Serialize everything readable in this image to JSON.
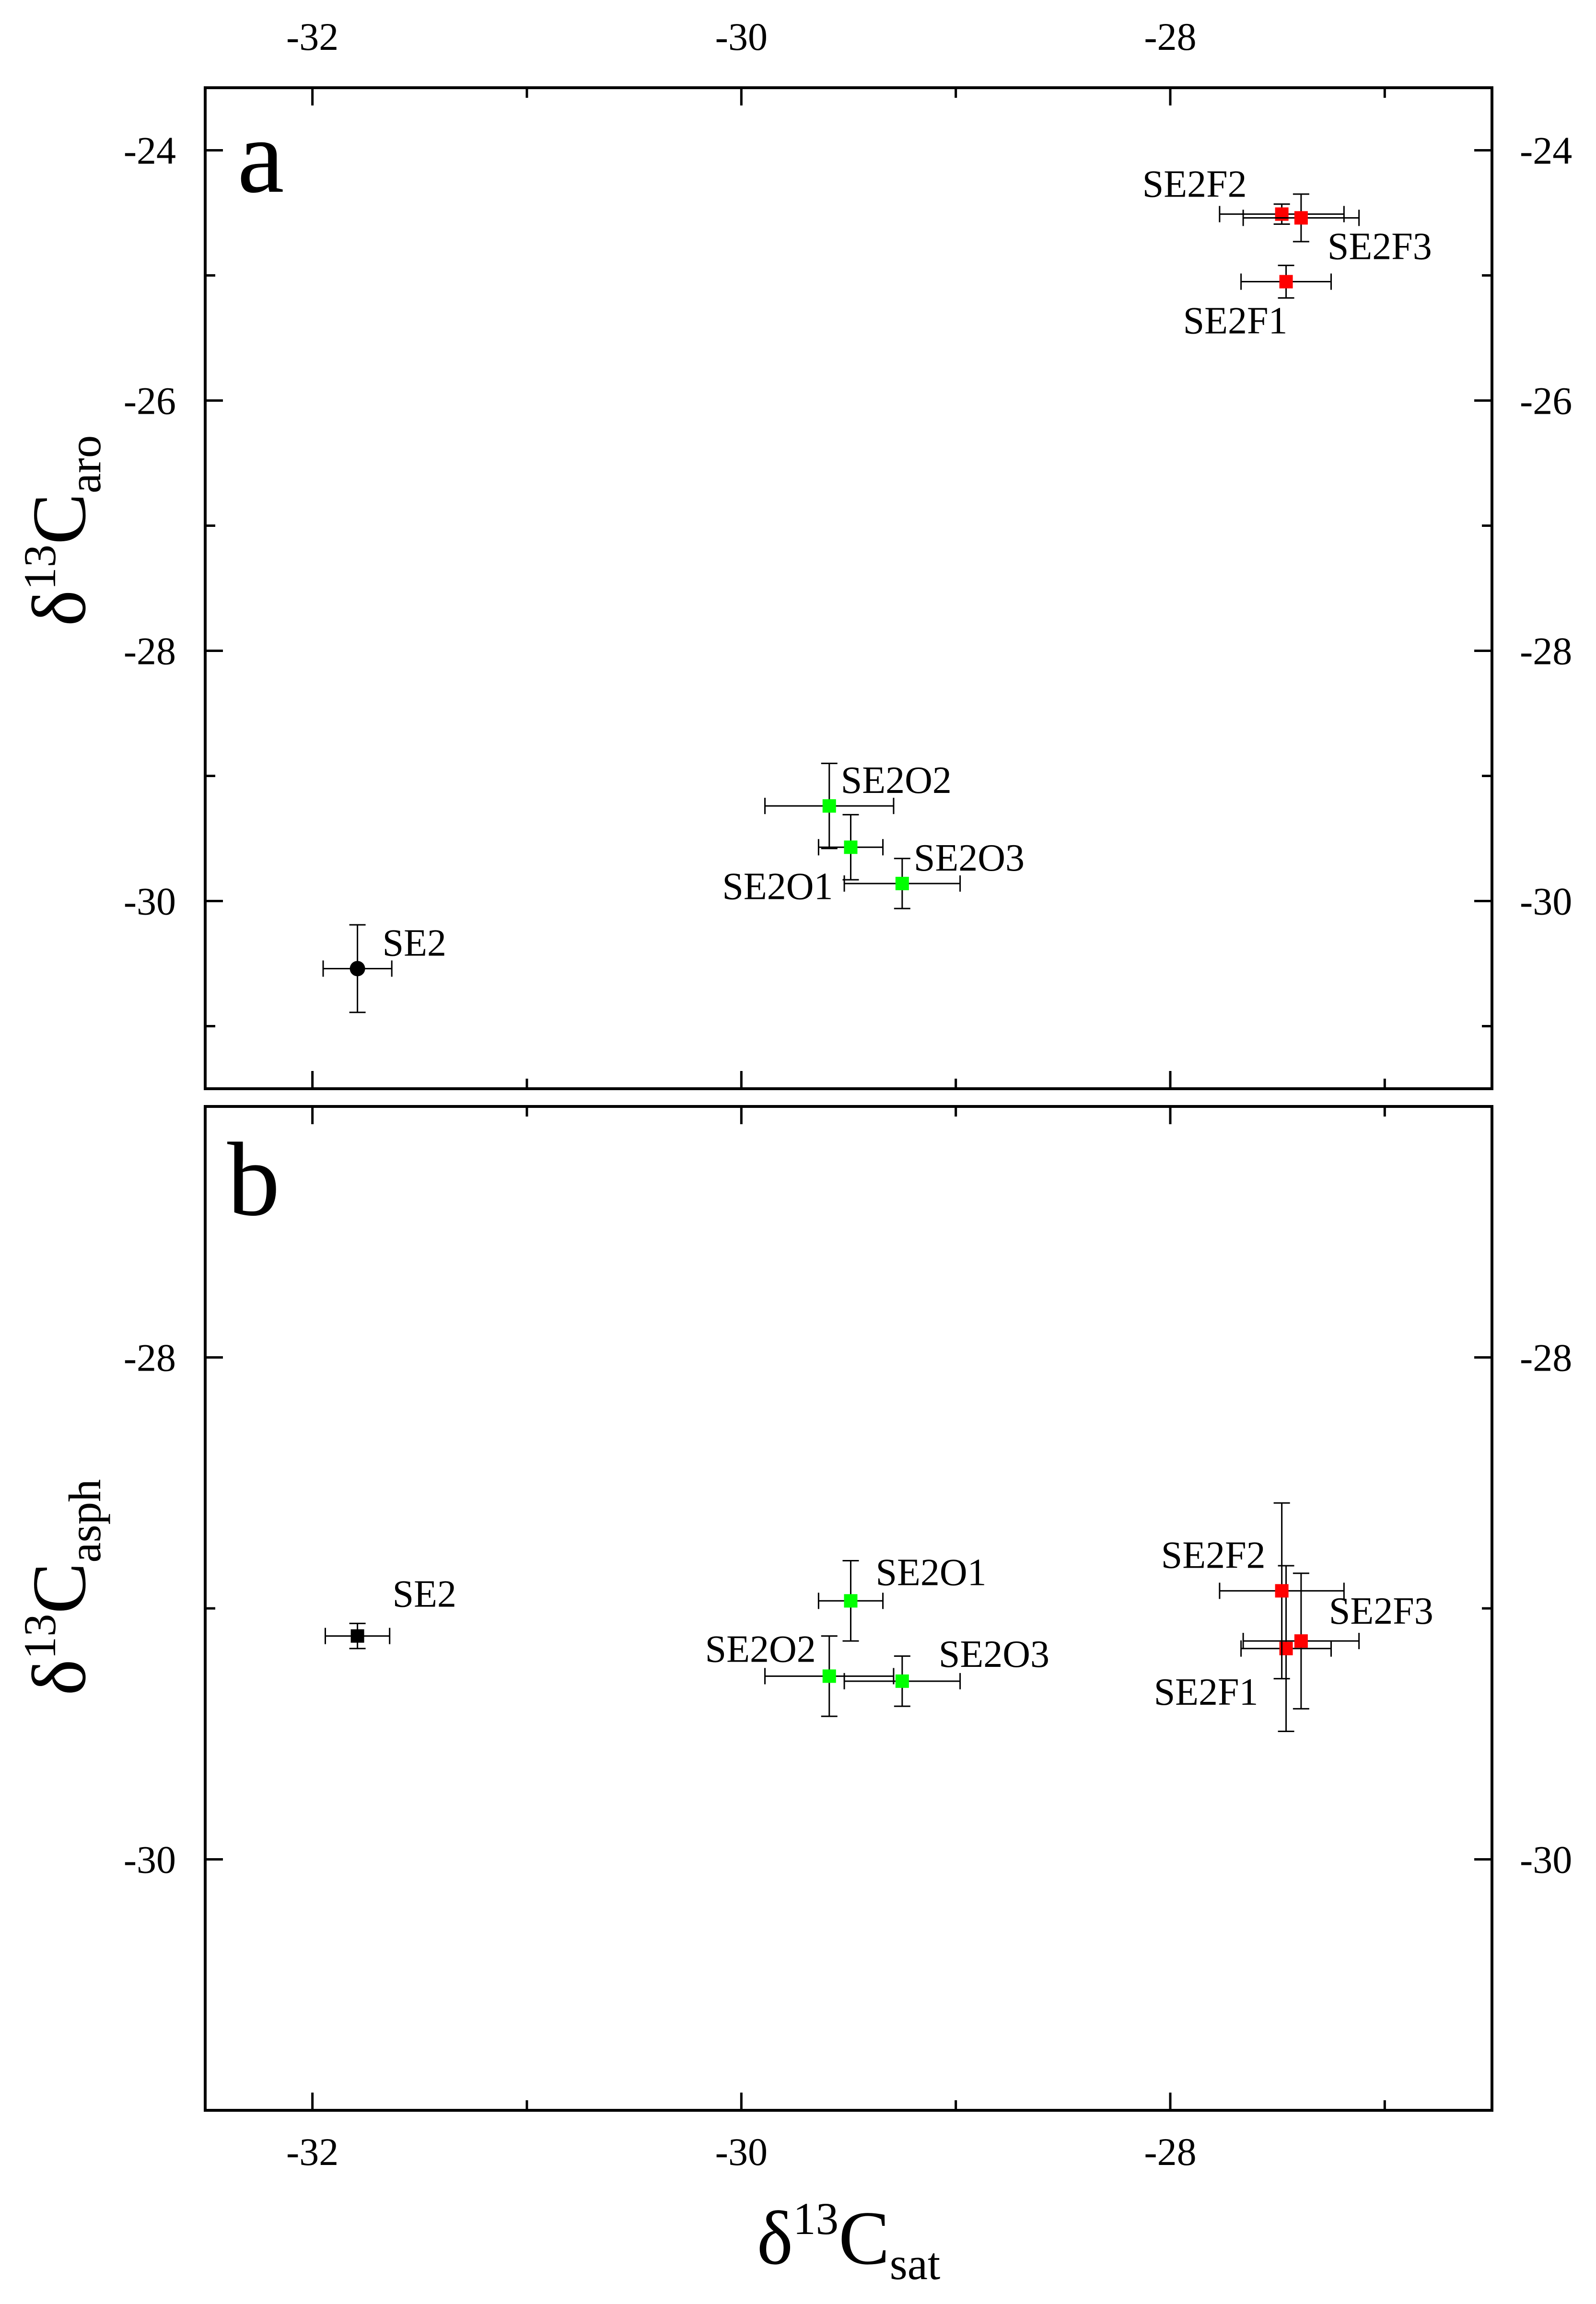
{
  "chart_data": [
    {
      "type": "scatter",
      "panel_label": "a",
      "ylabel": {
        "greek": "δ",
        "sup": "13",
        "main": "C",
        "sub": "aro"
      },
      "xlim": [
        -32.5,
        -26.5
      ],
      "ylim": [
        -31.5,
        -23.5
      ],
      "xticks": [
        -32,
        -30,
        -28
      ],
      "xticklabels": [
        "-32",
        "-30",
        "-28"
      ],
      "xticks_minor": [
        -31,
        -29,
        -27
      ],
      "yticks": [
        -30,
        -28,
        -26,
        -24
      ],
      "yticklabels": [
        "-30",
        "-28",
        "-26",
        "-24"
      ],
      "yticks_minor": [
        -31,
        -29,
        -27,
        -25
      ],
      "show_xticklabels": {
        "top": true,
        "bottom": false
      },
      "show_yticklabels": {
        "left": true,
        "right": true
      },
      "grid": false,
      "points": [
        {
          "label": "SE2",
          "x": -31.79,
          "y": -30.54,
          "xerr": 0.16,
          "yerr": 0.35,
          "marker": "circle",
          "color": "#000000"
        },
        {
          "label": "SE2O1",
          "x": -29.49,
          "y": -29.57,
          "xerr": 0.15,
          "yerr": 0.26,
          "marker": "square",
          "color": "#00ff00"
        },
        {
          "label": "SE2O2",
          "x": -29.59,
          "y": -29.24,
          "xerr": 0.3,
          "yerr": 0.34,
          "marker": "square",
          "color": "#00ff00"
        },
        {
          "label": "SE2O3",
          "x": -29.25,
          "y": -29.86,
          "xerr": 0.27,
          "yerr": 0.2,
          "marker": "square",
          "color": "#00ff00"
        },
        {
          "label": "SE2F1",
          "x": -27.46,
          "y": -25.05,
          "xerr": 0.21,
          "yerr": 0.13,
          "marker": "square",
          "color": "#ff0000"
        },
        {
          "label": "SE2F2",
          "x": -27.48,
          "y": -24.51,
          "xerr": 0.29,
          "yerr": 0.08,
          "marker": "square",
          "color": "#ff0000"
        },
        {
          "label": "SE2F3",
          "x": -27.39,
          "y": -24.54,
          "xerr": 0.27,
          "yerr": 0.19,
          "marker": "square",
          "color": "#ff0000"
        }
      ]
    },
    {
      "type": "scatter",
      "panel_label": "b",
      "xlabel": {
        "greek": "δ",
        "sup": "13",
        "main": "C",
        "sub": "sat"
      },
      "ylabel": {
        "greek": "δ",
        "sup": "13",
        "main": "C",
        "sub": "asph"
      },
      "xlim": [
        -32.5,
        -26.5
      ],
      "ylim": [
        -31,
        -27
      ],
      "xticks": [
        -32,
        -30,
        -28
      ],
      "xticklabels": [
        "-32",
        "-30",
        "-28"
      ],
      "xticks_minor": [
        -31,
        -29,
        -27
      ],
      "yticks": [
        -30,
        -28
      ],
      "yticklabels": [
        "-30",
        "-28"
      ],
      "yticks_minor": [
        -31,
        -29,
        -27
      ],
      "show_xticklabels": {
        "top": false,
        "bottom": true
      },
      "show_yticklabels": {
        "left": true,
        "right": true
      },
      "grid": false,
      "points": [
        {
          "label": "SE2",
          "x": -31.79,
          "y": -29.11,
          "xerr": 0.15,
          "yerr": 0.05,
          "marker": "square",
          "color": "#000000"
        },
        {
          "label": "SE2O1",
          "x": -29.49,
          "y": -28.97,
          "xerr": 0.15,
          "yerr": 0.16,
          "marker": "square",
          "color": "#00ff00"
        },
        {
          "label": "SE2O2",
          "x": -29.59,
          "y": -29.27,
          "xerr": 0.3,
          "yerr": 0.16,
          "marker": "square",
          "color": "#00ff00"
        },
        {
          "label": "SE2O3",
          "x": -29.25,
          "y": -29.29,
          "xerr": 0.27,
          "yerr": 0.1,
          "marker": "square",
          "color": "#00ff00"
        },
        {
          "label": "SE2F1",
          "x": -27.46,
          "y": -29.16,
          "xerr": 0.21,
          "yerr": 0.33,
          "marker": "square",
          "color": "#ff0000"
        },
        {
          "label": "SE2F2",
          "x": -27.48,
          "y": -28.93,
          "xerr": 0.29,
          "yerr": 0.35,
          "marker": "square",
          "color": "#ff0000"
        },
        {
          "label": "SE2F3",
          "x": -27.39,
          "y": -29.13,
          "xerr": 0.27,
          "yerr": 0.27,
          "marker": "square",
          "color": "#ff0000"
        }
      ]
    }
  ]
}
